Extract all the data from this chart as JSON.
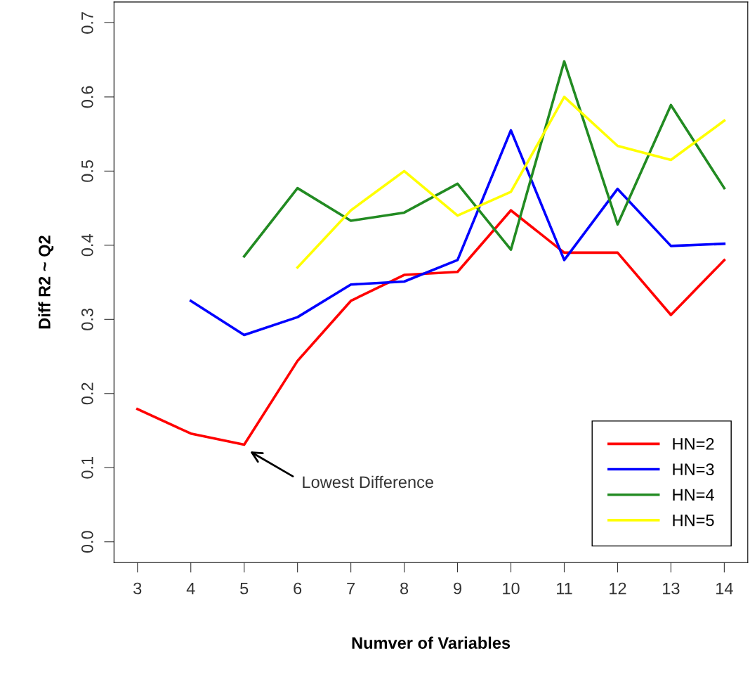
{
  "chart_data": {
    "type": "line",
    "xlabel": "Numver of Variables",
    "ylabel": "Diff R2 ~ Q2",
    "x": [
      3,
      4,
      5,
      6,
      7,
      8,
      9,
      10,
      11,
      12,
      13,
      14
    ],
    "xlim": [
      2.56,
      14.44
    ],
    "xticks": [
      3,
      4,
      5,
      6,
      7,
      8,
      9,
      10,
      11,
      12,
      13,
      14
    ],
    "ylim": [
      -0.028,
      0.728
    ],
    "yticks": [
      {
        "value": 0,
        "label": "0.0"
      },
      0.1,
      0.2,
      0.3,
      0.4,
      0.5,
      0.6,
      0.7
    ],
    "grid": false,
    "legend": "bottom right",
    "marker": "none",
    "line_style": "solid",
    "annotations": [
      "Lowest Difference"
    ],
    "series": [
      {
        "name": "HN=2",
        "color": "#ff0000",
        "values": [
          0.179,
          0.146,
          0.131,
          0.244,
          0.325,
          0.36,
          0.364,
          0.447,
          0.39,
          0.39,
          0.306,
          0.38
        ]
      },
      {
        "name": "HN=3",
        "color": "#0000ff",
        "values": [
          null,
          0.325,
          0.279,
          0.303,
          0.347,
          0.351,
          0.38,
          0.555,
          0.38,
          0.476,
          0.399,
          0.402
        ]
      },
      {
        "name": "HN=4",
        "color": "#228b22",
        "values": [
          null,
          null,
          0.385,
          0.477,
          0.433,
          0.444,
          0.483,
          0.394,
          0.648,
          0.428,
          0.589,
          0.477
        ]
      },
      {
        "name": "HN=5",
        "color": "#ffff00",
        "values": [
          null,
          null,
          null,
          0.37,
          0.447,
          0.5,
          0.44,
          0.472,
          0.6,
          0.534,
          0.515,
          0.568
        ]
      }
    ]
  }
}
